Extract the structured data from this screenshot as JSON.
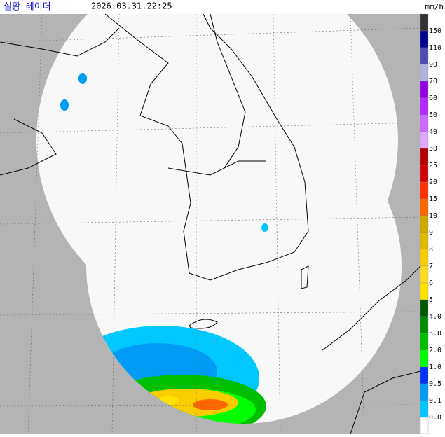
{
  "header": {
    "title": "실황 레이더",
    "time": "2026.03.31.22:25",
    "unit": "mm/h"
  },
  "legend": {
    "labels": [
      "150",
      "110",
      "90",
      "70",
      "60",
      "50",
      "40",
      "30",
      "25",
      "20",
      "15",
      "10",
      "9",
      "8",
      "7",
      "6",
      "5",
      "4.0",
      "3.0",
      "2.0",
      "1.0",
      "0.5",
      "0.1",
      "0.0"
    ],
    "colors": [
      "#333333",
      "#000390",
      "#4c4eb1",
      "#b3b4de",
      "#9300e4",
      "#b329ff",
      "#c969ff",
      "#e0a9ff",
      "#b40000",
      "#d20000",
      "#ff3200",
      "#ff6600",
      "#ccaa00",
      "#e0b900",
      "#f9cd00",
      "#ffdc1f",
      "#ffe100",
      "#005a00",
      "#008c00",
      "#00be00",
      "#00ff00",
      "#0033f5",
      "#009bf5",
      "#00c8ff",
      "#ffffff"
    ]
  }
}
